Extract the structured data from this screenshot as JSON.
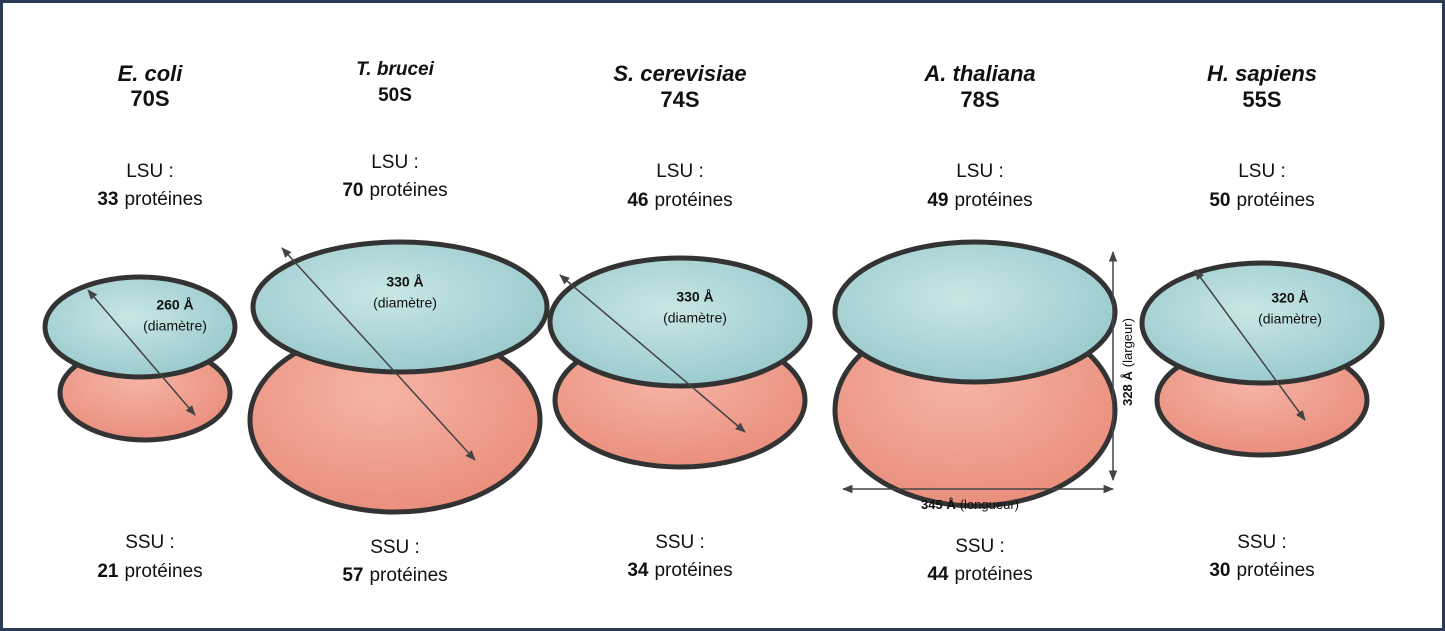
{
  "organisms": [
    {
      "name": "E. coli",
      "sedimentation": "70S",
      "lsu": {
        "label": "LSU :",
        "count": "33",
        "unit": "protéines"
      },
      "ssu": {
        "label": "SSU :",
        "count": "21",
        "unit": "protéines"
      },
      "size": {
        "value": "260 Å",
        "label": "(diamètre)"
      }
    },
    {
      "name": "T. brucei",
      "sedimentation": "50S",
      "lsu": {
        "label": "LSU :",
        "count": "70",
        "unit": "protéines"
      },
      "ssu": {
        "label": "SSU :",
        "count": "57",
        "unit": "protéines"
      },
      "size": {
        "value": "330 Å",
        "label": "(diamètre)"
      }
    },
    {
      "name": "S. cerevisiae",
      "sedimentation": "74S",
      "lsu": {
        "label": "LSU :",
        "count": "46",
        "unit": "protéines"
      },
      "ssu": {
        "label": "SSU :",
        "count": "34",
        "unit": "protéines"
      },
      "size": {
        "value": "330 Å",
        "label": "(diamètre)"
      }
    },
    {
      "name": "A. thaliana",
      "sedimentation": "78S",
      "lsu": {
        "label": "LSU :",
        "count": "49",
        "unit": "protéines"
      },
      "ssu": {
        "label": "SSU :",
        "count": "44",
        "unit": "protéines"
      },
      "height": {
        "value": "328 Å",
        "label": "(largeur)"
      },
      "length": {
        "value": "345 Å",
        "label": "(longueur)"
      }
    },
    {
      "name": "H. sapiens",
      "sedimentation": "55S",
      "lsu": {
        "label": "LSU :",
        "count": "50",
        "unit": "protéines"
      },
      "ssu": {
        "label": "SSU :",
        "count": "30",
        "unit": "protéines"
      },
      "size": {
        "value": "320 Å",
        "label": "(diamètre)"
      }
    }
  ]
}
